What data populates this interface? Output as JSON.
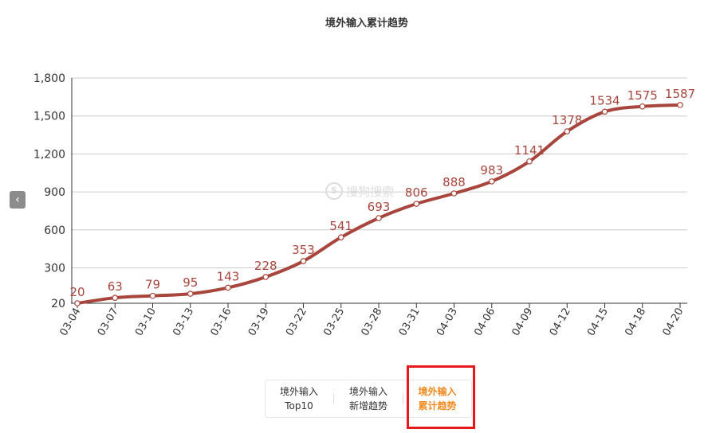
{
  "chart_data": {
    "type": "line",
    "title": "境外输入累计趋势",
    "categories": [
      "03-04",
      "03-07",
      "03-10",
      "03-13",
      "03-16",
      "03-19",
      "03-22",
      "03-25",
      "03-28",
      "03-31",
      "04-03",
      "04-06",
      "04-09",
      "04-12",
      "04-15",
      "04-18",
      "04-20"
    ],
    "series": [
      {
        "values": [
          20,
          63,
          79,
          95,
          143,
          228,
          353,
          541,
          693,
          806,
          888,
          983,
          1141,
          1378,
          1534,
          1575,
          1587
        ]
      }
    ],
    "data_labels": [
      "20",
      "63",
      "79",
      "95",
      "143",
      "228",
      "353",
      "541",
      "693",
      "806",
      "888",
      "983",
      "1141",
      "1378",
      "1534",
      "1575",
      "1587"
    ],
    "y_ticks": [
      20,
      300,
      600,
      900,
      1200,
      1500,
      1800
    ],
    "y_tick_labels": [
      "20",
      "300",
      "600",
      "900",
      "1,200",
      "1,500",
      "1,800"
    ],
    "ylim": [
      20,
      1800
    ],
    "grid": true,
    "line_color": "#a8453c"
  },
  "tabs": [
    {
      "line1": "境外输入",
      "line2": "Top10",
      "active": false
    },
    {
      "line1": "境外输入",
      "line2": "新增趋势",
      "active": false
    },
    {
      "line1": "境外输入",
      "line2": "累计趋势",
      "active": true
    }
  ],
  "nav": {
    "prev_icon": "chevron-left-icon",
    "prev_glyph": "‹"
  },
  "watermark": {
    "icon": "S",
    "text": "搜狗搜索"
  },
  "colors": {
    "accent": "#f08a1f",
    "highlight": "#e8191c",
    "grid": "#cccccc",
    "label": "#a8453c"
  }
}
